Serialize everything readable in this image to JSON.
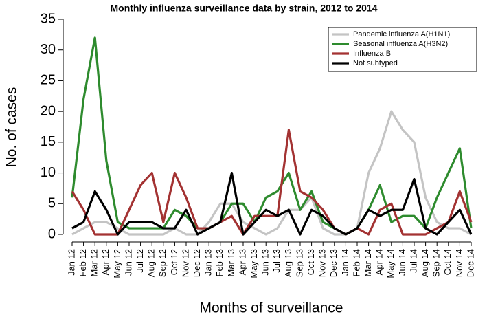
{
  "chart_data": {
    "type": "line",
    "title": "Monthly influenza surveillance data by strain, 2012 to 2014",
    "x_label": "Months of surveillance",
    "y_label": "No. of cases",
    "categories": [
      "Jan 12",
      "Feb 12",
      "Mar 12",
      "Apr 12",
      "May 12",
      "Jun 12",
      "Jul 12",
      "Aug 12",
      "Sep 12",
      "Oct 12",
      "Nov 12",
      "Dec 12",
      "Jan 13",
      "Feb 13",
      "Mar 13",
      "Apr 13",
      "May 13",
      "Jun 13",
      "Jul 13",
      "Aug 13",
      "Sep 13",
      "Oct 13",
      "Nov 13",
      "Dec 13",
      "Jan 14",
      "Feb 14",
      "Mar 14",
      "Apr 14",
      "May 14",
      "Jun 14",
      "Jul 14",
      "Aug 14",
      "Sep 14",
      "Oct 14",
      "Nov 14",
      "Dec 14"
    ],
    "series": [
      {
        "name": "Pandemic influenza A(H1N1)",
        "color": "#c4c4c4",
        "values": [
          0,
          1,
          2,
          2,
          1,
          0,
          0,
          0,
          0,
          1,
          0,
          0,
          2,
          5,
          5,
          2,
          1,
          0,
          1,
          4,
          4,
          6,
          1,
          0,
          0,
          1,
          10,
          14,
          20,
          17,
          15,
          6,
          2,
          1,
          1,
          0
        ]
      },
      {
        "name": "Seasonal influenza A(H3N2)",
        "color": "#2e8b2e",
        "values": [
          6,
          22,
          32,
          12,
          2,
          1,
          1,
          1,
          1,
          4,
          3,
          1,
          1,
          2,
          5,
          5,
          2,
          6,
          7,
          10,
          4,
          7,
          2,
          1,
          0,
          1,
          4,
          8,
          2,
          3,
          3,
          1,
          6,
          10,
          14,
          1
        ]
      },
      {
        "name": "Influenza B",
        "color": "#a33232",
        "values": [
          7,
          4,
          0,
          0,
          0,
          4,
          8,
          10,
          2,
          10,
          6,
          1,
          1,
          2,
          3,
          0,
          3,
          3,
          3,
          17,
          7,
          6,
          4,
          1,
          0,
          1,
          0,
          4,
          5,
          0,
          0,
          0,
          1,
          2,
          7,
          2
        ]
      },
      {
        "name": "Not subtyped",
        "color": "#000000",
        "values": [
          1,
          2,
          7,
          4,
          0,
          2,
          2,
          2,
          1,
          1,
          4,
          0,
          1,
          2,
          10,
          0,
          2,
          4,
          3,
          4,
          0,
          4,
          3,
          1,
          0,
          1,
          4,
          3,
          4,
          4,
          9,
          1,
          0,
          2,
          4,
          0
        ]
      }
    ],
    "ylim": [
      0,
      35
    ],
    "yticks": [
      0,
      5,
      10,
      15,
      20,
      25,
      30,
      35
    ],
    "grid": false,
    "legend": "top-right"
  }
}
